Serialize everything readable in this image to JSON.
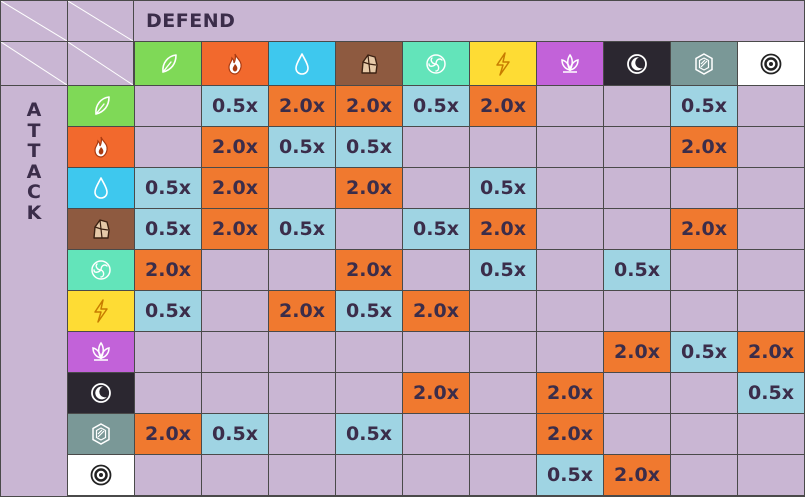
{
  "title": "DEFEND",
  "side_label": "ATTACK",
  "types": [
    {
      "name": "grass",
      "icon": "leaf-icon",
      "color": "#7fd957"
    },
    {
      "name": "fire",
      "icon": "flame-icon",
      "color": "#f2692d"
    },
    {
      "name": "water",
      "icon": "water-drop-icon",
      "color": "#3ec8ee"
    },
    {
      "name": "rock",
      "icon": "rock-icon",
      "color": "#8e5a40"
    },
    {
      "name": "wind",
      "icon": "swirl-icon",
      "color": "#63e4ba"
    },
    {
      "name": "electric",
      "icon": "lightning-icon",
      "color": "#fedc34"
    },
    {
      "name": "mystic",
      "icon": "lotus-icon",
      "color": "#c262d9"
    },
    {
      "name": "dark",
      "icon": "moon-icon",
      "color": "#2b2730"
    },
    {
      "name": "metal",
      "icon": "hexagon-icon",
      "color": "#7a9897"
    },
    {
      "name": "normal",
      "icon": "target-icon",
      "color": "#ffffff"
    }
  ],
  "colors": {
    "strong": "#f0792f",
    "weak": "#9fd4e3",
    "empty": "#c9b6d3",
    "text": "#3b2d4a"
  },
  "matrix": [
    [
      "",
      "0.5x",
      "2.0x",
      "2.0x",
      "0.5x",
      "2.0x",
      "",
      "",
      "0.5x",
      ""
    ],
    [
      "",
      "2.0x",
      "0.5x",
      "0.5x",
      "",
      "",
      "",
      "",
      "2.0x",
      ""
    ],
    [
      "0.5x",
      "2.0x",
      "",
      "2.0x",
      "",
      "0.5x",
      "",
      "",
      "",
      ""
    ],
    [
      "0.5x",
      "2.0x",
      "0.5x",
      "",
      "0.5x",
      "2.0x",
      "",
      "",
      "2.0x",
      ""
    ],
    [
      "2.0x",
      "",
      "",
      "2.0x",
      "",
      "0.5x",
      "",
      "0.5x",
      "",
      ""
    ],
    [
      "0.5x",
      "",
      "2.0x",
      "0.5x",
      "2.0x",
      "",
      "",
      "",
      "",
      ""
    ],
    [
      "",
      "",
      "",
      "",
      "",
      "",
      "",
      "2.0x",
      "0.5x",
      "2.0x"
    ],
    [
      "",
      "",
      "",
      "",
      "2.0x",
      "",
      "2.0x",
      "",
      "",
      "0.5x"
    ],
    [
      "2.0x",
      "0.5x",
      "",
      "0.5x",
      "",
      "",
      "2.0x",
      "",
      "",
      ""
    ],
    [
      "",
      "",
      "",
      "",
      "",
      "",
      "0.5x",
      "2.0x",
      "",
      ""
    ]
  ]
}
